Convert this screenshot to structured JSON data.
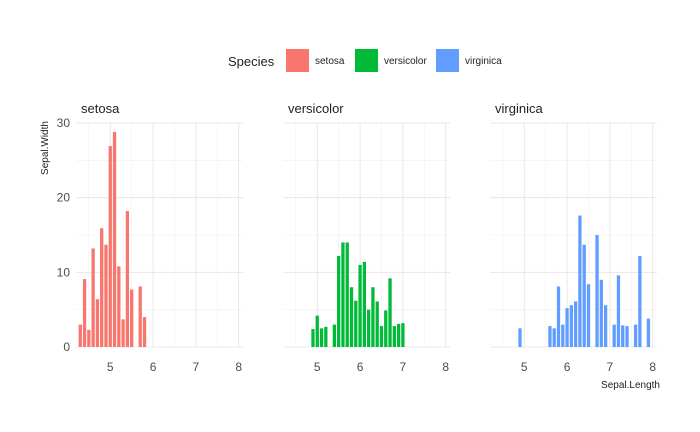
{
  "chart_data": {
    "type": "bar",
    "subtype": "faceted-histogram",
    "xlabel": "Sepal.Length",
    "ylabel": "Sepal.Width",
    "xlim": [
      4.2,
      8.1
    ],
    "ylim": [
      0,
      30
    ],
    "x_ticks": [
      5,
      6,
      7,
      8
    ],
    "y_ticks": [
      0,
      10,
      20,
      30
    ],
    "bar_width": 0.1,
    "grid": true,
    "legend": {
      "title": "Species",
      "position": "top",
      "entries": [
        "setosa",
        "versicolor",
        "virginica"
      ]
    },
    "series": [
      {
        "name": "setosa",
        "color": "#F8766D",
        "x": [
          4.3,
          4.4,
          4.5,
          4.6,
          4.7,
          4.8,
          4.9,
          5.0,
          5.1,
          5.2,
          5.3,
          5.4,
          5.5,
          5.7,
          5.8
        ],
        "values": [
          3.0,
          9.1,
          2.3,
          13.2,
          6.4,
          15.9,
          13.7,
          26.9,
          28.8,
          10.8,
          3.7,
          18.2,
          7.7,
          8.1,
          4.0
        ]
      },
      {
        "name": "versicolor",
        "color": "#00BA38",
        "x": [
          4.9,
          5.0,
          5.1,
          5.2,
          5.4,
          5.5,
          5.6,
          5.7,
          5.8,
          5.9,
          6.0,
          6.1,
          6.2,
          6.3,
          6.4,
          6.5,
          6.6,
          6.7,
          6.8,
          6.9,
          7.0
        ],
        "values": [
          2.4,
          4.2,
          2.5,
          2.7,
          3.0,
          12.2,
          14.0,
          14.0,
          8.0,
          6.2,
          11.0,
          11.4,
          5.0,
          8.0,
          6.1,
          2.8,
          4.9,
          9.2,
          2.8,
          3.1,
          3.2
        ]
      },
      {
        "name": "virginica",
        "color": "#619CFF",
        "x": [
          4.9,
          5.6,
          5.7,
          5.8,
          5.9,
          6.0,
          6.1,
          6.2,
          6.3,
          6.4,
          6.5,
          6.7,
          6.8,
          6.9,
          7.1,
          7.2,
          7.3,
          7.4,
          7.6,
          7.7,
          7.9
        ],
        "values": [
          2.5,
          2.8,
          2.5,
          8.1,
          3.0,
          5.2,
          5.6,
          6.1,
          17.6,
          13.7,
          8.4,
          15.0,
          9.0,
          5.6,
          3.0,
          9.6,
          2.9,
          2.8,
          3.0,
          12.2,
          3.8
        ]
      }
    ]
  }
}
